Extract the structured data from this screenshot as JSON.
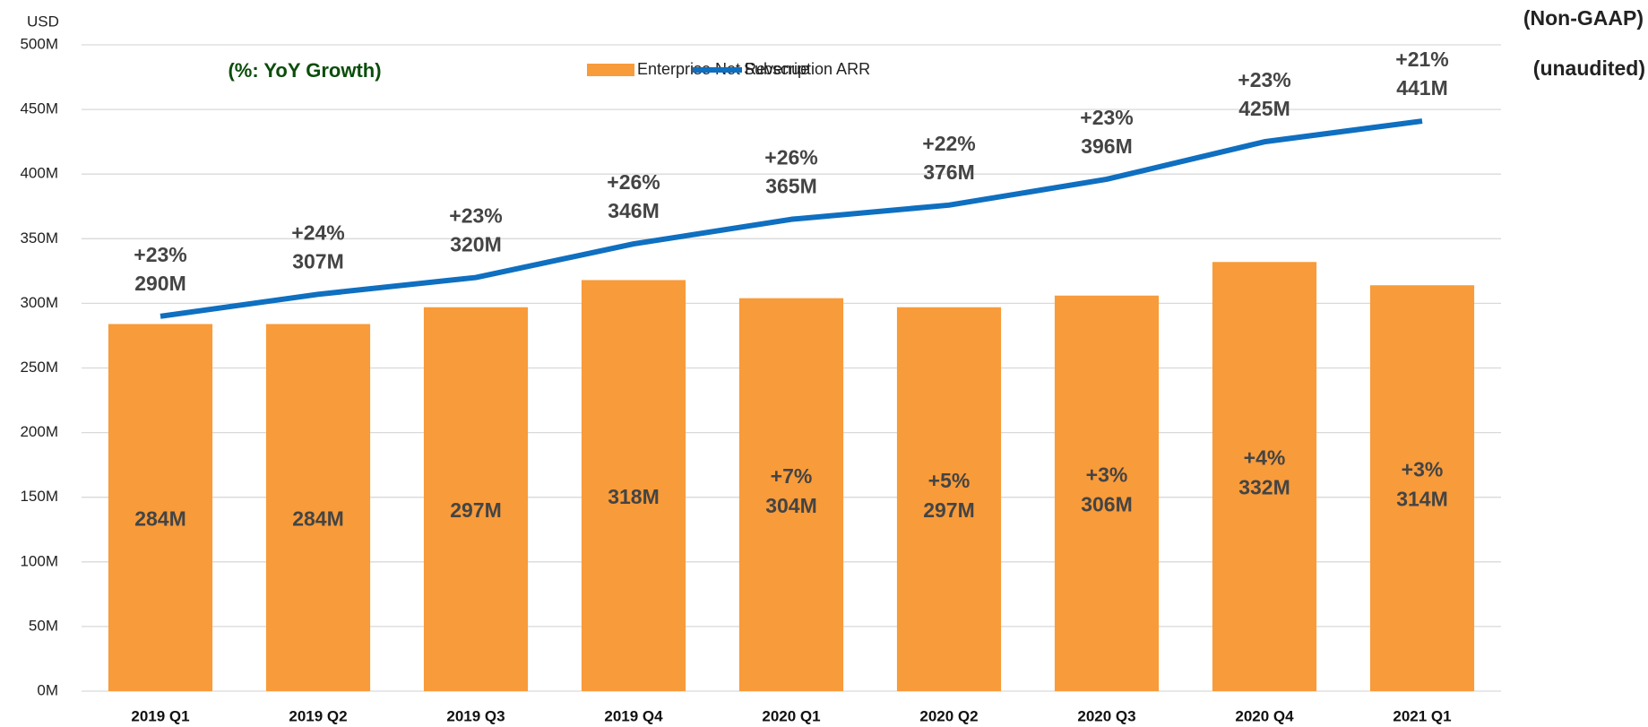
{
  "chart_data": {
    "type": "bar_line",
    "unit_label": "USD",
    "notes": [
      "(Non-GAAP)",
      "(unaudited)"
    ],
    "annotation": "(%: YoY Growth)",
    "categories": [
      "2019 Q1",
      "2019 Q2",
      "2019 Q3",
      "2019 Q4",
      "2020 Q1",
      "2020 Q2",
      "2020 Q3",
      "2020 Q4",
      "2021 Q1"
    ],
    "series": [
      {
        "name": "Enterprise Net Revenue",
        "kind": "bar",
        "color": "#f89b3a",
        "values": [
          284,
          284,
          297,
          318,
          304,
          297,
          306,
          332,
          314
        ],
        "value_labels": [
          "284M",
          "284M",
          "297M",
          "318M",
          "304M",
          "297M",
          "306M",
          "332M",
          "314M"
        ],
        "growth_labels": [
          null,
          null,
          null,
          null,
          "+7%",
          "+5%",
          "+3%",
          "+4%",
          "+3%"
        ]
      },
      {
        "name": "Subscription ARR",
        "kind": "line",
        "color": "#0f6fc0",
        "values": [
          290,
          307,
          320,
          346,
          365,
          376,
          396,
          425,
          441
        ],
        "value_labels": [
          "290M",
          "307M",
          "320M",
          "346M",
          "365M",
          "376M",
          "396M",
          "425M",
          "441M"
        ],
        "growth_labels": [
          "+23%",
          "+24%",
          "+23%",
          "+26%",
          "+26%",
          "+22%",
          "+23%",
          "+23%",
          "+21%"
        ]
      }
    ],
    "ylim": [
      0,
      500
    ],
    "yticks": [
      {
        "value": 0,
        "label": "0M"
      },
      {
        "value": 50,
        "label": "50M"
      },
      {
        "value": 100,
        "label": "100M"
      },
      {
        "value": 150,
        "label": "150M"
      },
      {
        "value": 200,
        "label": "200M"
      },
      {
        "value": 250,
        "label": "250M"
      },
      {
        "value": 300,
        "label": "300M"
      },
      {
        "value": 350,
        "label": "350M"
      },
      {
        "value": 400,
        "label": "400M"
      },
      {
        "value": 450,
        "label": "450M"
      },
      {
        "value": 500,
        "label": "500M"
      }
    ],
    "grid": true
  }
}
